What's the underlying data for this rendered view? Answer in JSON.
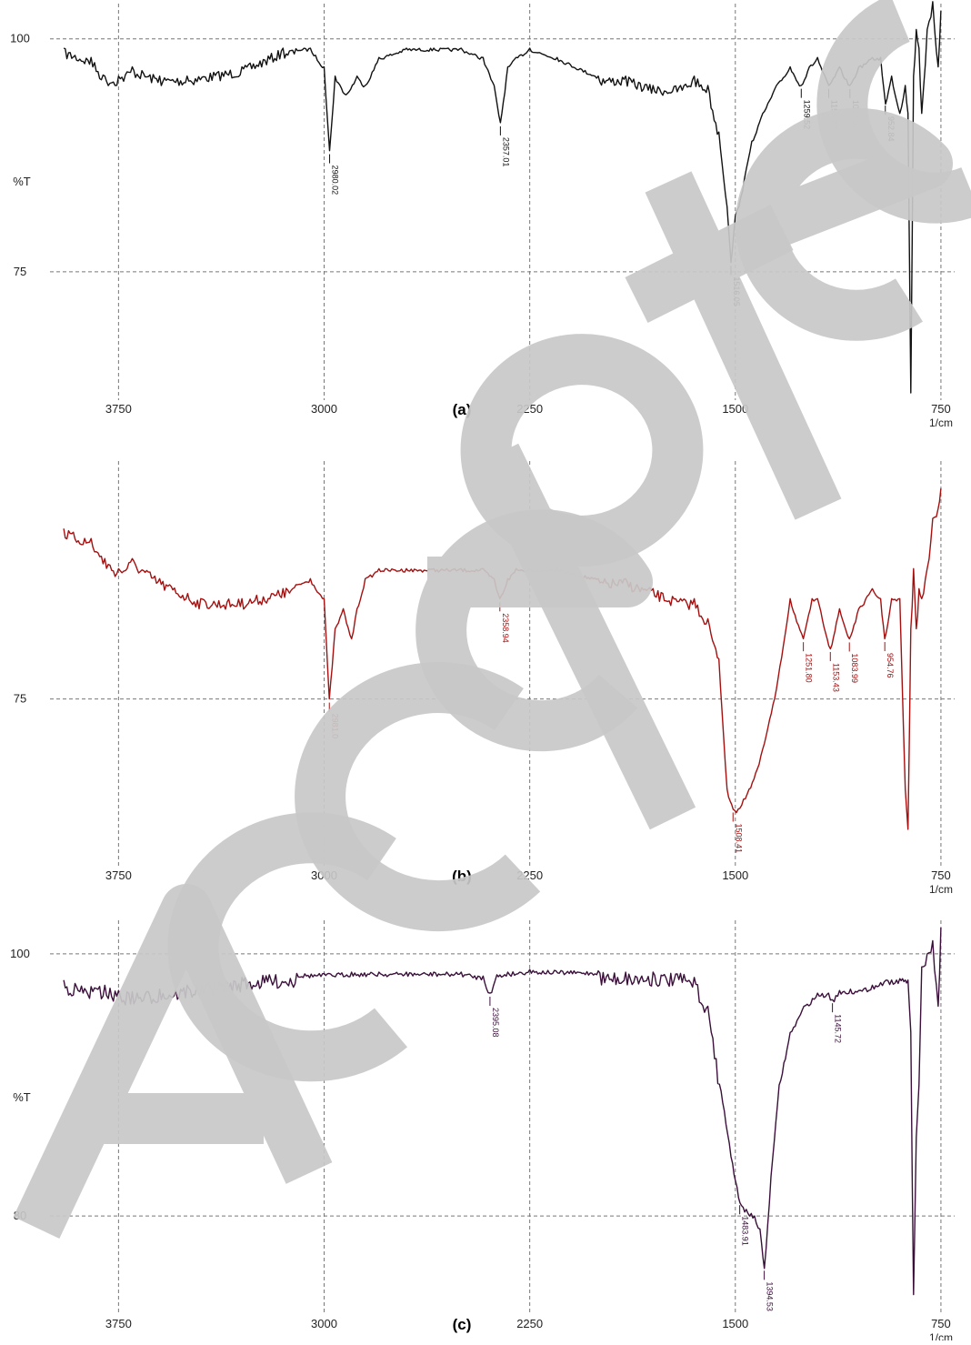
{
  "chart_data": [
    {
      "type": "line",
      "panel_label": "(a)",
      "x_unit": "1/cm",
      "y_label": "%T",
      "xlim": [
        4000,
        700
      ],
      "ylim": [
        62,
        103
      ],
      "xticks": [
        3750,
        3000,
        2250,
        1500,
        750
      ],
      "yticks": [
        100,
        75
      ],
      "grid": true,
      "color": "#111111",
      "peaks": [
        {
          "x": 2980.02,
          "label": "2980.02"
        },
        {
          "x": 2357.01,
          "label": "2357.01"
        },
        {
          "x": 1516.05,
          "label": "1516.05"
        },
        {
          "x": 1259.52,
          "label": "1259.52"
        },
        {
          "x": 1159.22,
          "label": "1159.22"
        },
        {
          "x": 1082.07,
          "label": "1082.07"
        },
        {
          "x": 952.84,
          "label": "952.84"
        }
      ],
      "series": [
        {
          "x": [
            3950,
            3850,
            3800,
            3750,
            3700,
            3600,
            3500,
            3300,
            3150,
            3050,
            3000,
            2980,
            2960,
            2920,
            2880,
            2850,
            2800,
            2700,
            2600,
            2500,
            2420,
            2380,
            2357,
            2330,
            2300,
            2250,
            2150,
            2000,
            1900,
            1800,
            1700,
            1650,
            1600,
            1560,
            1530,
            1516,
            1500,
            1480,
            1460,
            1440,
            1400,
            1350,
            1300,
            1260,
            1230,
            1200,
            1159,
            1120,
            1082,
            1050,
            1000,
            970,
            952,
            930,
            900,
            880,
            870,
            860,
            850,
            840,
            830,
            820,
            800,
            780,
            760,
            750
          ],
          "y": [
            99,
            98,
            96,
            96,
            97,
            96,
            96,
            97,
            99,
            99,
            97,
            88,
            96,
            94,
            96,
            95,
            98,
            99,
            99,
            99,
            98,
            95,
            91,
            97,
            98,
            99,
            98,
            96,
            96,
            95,
            95,
            96,
            95,
            90,
            82,
            76,
            81,
            83,
            86,
            89,
            92,
            95,
            97,
            95,
            97,
            98,
            95,
            97,
            95,
            97,
            98,
            98,
            93,
            96,
            92,
            95,
            92,
            62,
            96,
            101,
            99,
            92,
            101,
            104,
            97,
            103
          ]
        }
      ]
    },
    {
      "type": "line",
      "panel_label": "(b)",
      "x_unit": "1/cm",
      "y_label": "",
      "xlim": [
        4000,
        700
      ],
      "ylim": [
        59,
        98
      ],
      "xticks": [
        3750,
        3000,
        2250,
        1500,
        750
      ],
      "yticks": [
        75
      ],
      "grid": true,
      "color": "#a31010",
      "peaks": [
        {
          "x": 2981.0,
          "label": "2981.0"
        },
        {
          "x": 2358.94,
          "label": "2358.94"
        },
        {
          "x": 1508.41,
          "label": "1508.41"
        },
        {
          "x": 1251.8,
          "label": "1251.80"
        },
        {
          "x": 1153.43,
          "label": "1153.43"
        },
        {
          "x": 1083.99,
          "label": "1083.99"
        },
        {
          "x": 954.76,
          "label": "954.76"
        }
      ],
      "series": [
        {
          "x": [
            3950,
            3850,
            3800,
            3750,
            3700,
            3600,
            3450,
            3300,
            3150,
            3050,
            3000,
            2981,
            2960,
            2930,
            2900,
            2880,
            2850,
            2800,
            2700,
            2600,
            2500,
            2420,
            2380,
            2359,
            2330,
            2300,
            2250,
            2150,
            2000,
            1900,
            1800,
            1700,
            1650,
            1600,
            1560,
            1530,
            1508,
            1490,
            1470,
            1450,
            1420,
            1400,
            1350,
            1300,
            1252,
            1220,
            1200,
            1153,
            1120,
            1084,
            1050,
            1000,
            970,
            955,
            930,
            900,
            880,
            870,
            860,
            850,
            840,
            830,
            820,
            800,
            780,
            760,
            750
          ],
          "y": [
            92,
            91,
            89,
            88,
            89,
            87,
            85,
            85,
            86,
            87,
            85,
            75,
            82,
            84,
            81,
            84,
            87,
            88,
            88,
            88,
            88,
            88,
            87,
            85,
            87,
            88,
            88,
            88,
            87,
            87,
            86,
            85,
            85,
            83,
            79,
            66,
            64,
            64,
            65,
            66,
            68,
            70,
            76,
            85,
            81,
            85,
            85,
            80,
            84,
            81,
            84,
            86,
            85,
            81,
            85,
            85,
            66,
            62,
            82,
            88,
            82,
            86,
            85,
            88,
            93,
            94,
            96
          ]
        }
      ]
    },
    {
      "type": "line",
      "panel_label": "(c)",
      "x_unit": "1/cm",
      "y_label": "%T",
      "xlim": [
        4000,
        700
      ],
      "ylim": [
        73,
        102
      ],
      "xticks": [
        3750,
        3000,
        2250,
        1500,
        750
      ],
      "yticks": [
        100,
        80
      ],
      "grid": true,
      "color": "#3a0f3a",
      "peaks": [
        {
          "x": 2395.08,
          "label": "2395.08"
        },
        {
          "x": 1483.91,
          "label": "1483.91"
        },
        {
          "x": 1394.53,
          "label": "1394.53"
        },
        {
          "x": 1145.72,
          "label": "1145.72"
        }
      ],
      "series": [
        {
          "x": [
            3950,
            3850,
            3800,
            3750,
            3700,
            3600,
            3500,
            3400,
            3300,
            3200,
            3100,
            3000,
            2900,
            2800,
            2700,
            2600,
            2500,
            2420,
            2395,
            2370,
            2330,
            2250,
            2100,
            2000,
            1900,
            1800,
            1700,
            1650,
            1600,
            1570,
            1540,
            1510,
            1483,
            1460,
            1430,
            1410,
            1394,
            1370,
            1340,
            1300,
            1250,
            1200,
            1160,
            1146,
            1120,
            1080,
            1050,
            1000,
            970,
            950,
            930,
            900,
            890,
            880,
            870,
            860,
            850,
            840,
            830,
            820,
            800,
            780,
            760,
            750
          ],
          "y": [
            98,
            97.5,
            97.6,
            97.2,
            97.1,
            97.3,
            97.6,
            97.9,
            98.2,
            98.4,
            98.5,
            98.5,
            98.6,
            98.6,
            98.6,
            98.6,
            98.6,
            98.3,
            97,
            98.4,
            98.6,
            98.8,
            98.7,
            98.7,
            98.6,
            98.6,
            98.5,
            98.2,
            96,
            92,
            88,
            84,
            81,
            80.5,
            80,
            79,
            76,
            83,
            90,
            94,
            96,
            97,
            97,
            96.5,
            97.2,
            97.3,
            97.2,
            97.6,
            97.8,
            98,
            98,
            98.1,
            98.1,
            98,
            98,
            94,
            74,
            86,
            90,
            99,
            100,
            101,
            96,
            102
          ]
        }
      ]
    }
  ]
}
